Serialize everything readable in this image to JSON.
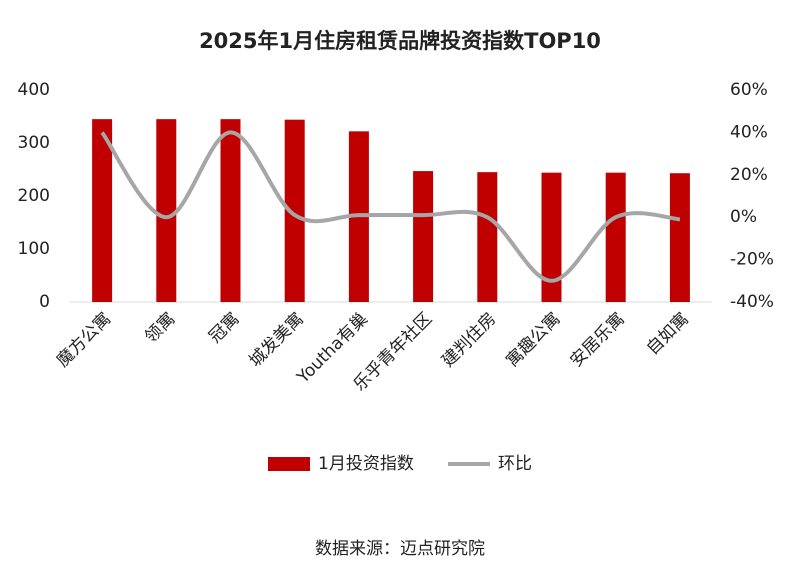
{
  "chart_data": {
    "type": "combo",
    "title": "2025年1月住房租赁品牌投资指数TOP10",
    "categories": [
      "魔方公寓",
      "领寓",
      "冠寓",
      "城发美寓",
      "Youtha有巢",
      "乐乎青年社区",
      "建判住房",
      "寓趣公寓",
      "安居乐寓",
      "自如寓"
    ],
    "series": [
      {
        "name": "1月投资指数",
        "type": "bar",
        "color": "#c00000",
        "values": [
          345,
          345,
          345,
          344,
          322,
          247,
          245,
          244,
          244,
          243
        ]
      },
      {
        "name": "环比",
        "type": "line",
        "axis": "y2",
        "color": "#a6a6a6",
        "values": [
          40,
          0,
          40,
          1,
          1,
          1,
          0,
          -30,
          0,
          -1
        ]
      }
    ],
    "ylim": [
      0,
      400
    ],
    "yticks": [
      0,
      100,
      200,
      300,
      400
    ],
    "y2lim": [
      -40,
      60
    ],
    "y2ticks": [
      {
        "value": -40,
        "label": "-40%"
      },
      {
        "value": -20,
        "label": "-20%"
      },
      {
        "value": 0,
        "label": "0%"
      },
      {
        "value": 20,
        "label": "20%"
      },
      {
        "value": 40,
        "label": "40%"
      },
      {
        "value": 60,
        "label": "60%"
      }
    ],
    "source": "数据来源：迈点研究院"
  }
}
